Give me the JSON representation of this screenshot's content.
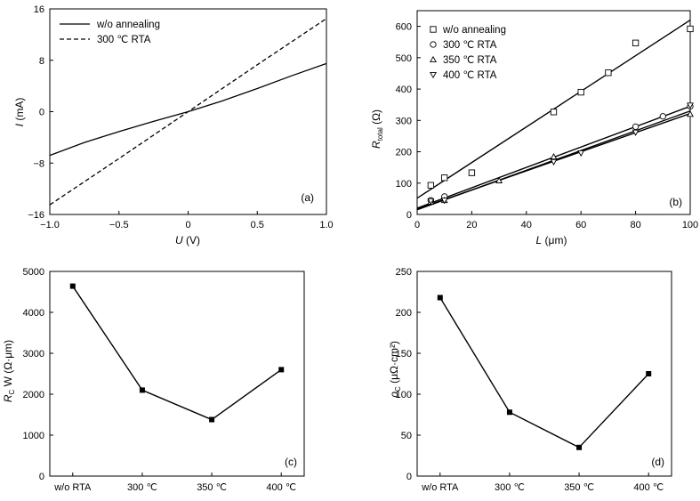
{
  "chart_data": [
    {
      "type": "line",
      "panel_label": "(a)",
      "xlabel": "U",
      "xlabel_unit": " (V)",
      "ylabel": "I",
      "ylabel_unit": " (mA)",
      "xlim": [
        -1.0,
        1.0
      ],
      "ylim": [
        -16,
        16
      ],
      "xticks": [
        -1.0,
        -0.5,
        0,
        0.5,
        1.0
      ],
      "xticklabels": [
        "−1.0",
        "−0.5",
        "0",
        "0.5",
        "1.0"
      ],
      "yticks": [
        -16,
        -8,
        0,
        8,
        16
      ],
      "yticklabels": [
        "−16",
        "−8",
        "0",
        "8",
        "16"
      ],
      "legend_position": "top-left",
      "series": [
        {
          "name": "w/o annealing",
          "style": "solid",
          "x": [
            -1.0,
            -0.75,
            -0.5,
            -0.25,
            0,
            0.25,
            0.5,
            0.75,
            1.0
          ],
          "y": [
            -6.8,
            -4.8,
            -3.1,
            -1.5,
            0,
            1.7,
            3.6,
            5.6,
            7.5
          ]
        },
        {
          "name": "300 ℃ RTA",
          "style": "dashed",
          "x": [
            -1.0,
            -0.5,
            0,
            0.5,
            1.0
          ],
          "y": [
            -14.5,
            -7.3,
            0,
            7.3,
            14.5
          ]
        }
      ]
    },
    {
      "type": "scatter",
      "panel_label": "(b)",
      "xlabel": "L",
      "xlabel_unit": " (μm)",
      "ylabel": "R",
      "ylabel_sub": "total",
      "ylabel_unit": " (Ω)",
      "xlim": [
        0,
        100
      ],
      "ylim": [
        0,
        650
      ],
      "xticks": [
        0,
        20,
        40,
        60,
        80,
        100
      ],
      "xticklabels": [
        "0",
        "20",
        "40",
        "60",
        "80",
        "100"
      ],
      "yticks": [
        0,
        100,
        200,
        300,
        400,
        500,
        600
      ],
      "yticklabels": [
        "0",
        "100",
        "200",
        "300",
        "400",
        "500",
        "600"
      ],
      "legend_position": "top-left",
      "series": [
        {
          "name": "w/o annealing",
          "marker": "square",
          "x": [
            5,
            10,
            20,
            50,
            60,
            70,
            80,
            100
          ],
          "y": [
            93,
            117,
            133,
            327,
            390,
            452,
            547,
            592
          ],
          "fit": [
            [
              0,
              52
            ],
            [
              100,
              620
            ]
          ]
        },
        {
          "name": "300 ℃ RTA",
          "marker": "circle",
          "x": [
            5,
            10,
            80,
            90,
            100
          ],
          "y": [
            45,
            57,
            280,
            313,
            345
          ],
          "fit": [
            [
              0,
              20
            ],
            [
              100,
              345
            ]
          ]
        },
        {
          "name": "350 ℃ RTA",
          "marker": "triangle-up",
          "x": [
            5,
            10,
            30,
            50,
            100
          ],
          "y": [
            40,
            45,
            108,
            184,
            320
          ],
          "fit": [
            [
              0,
              17
            ],
            [
              100,
              322
            ]
          ]
        },
        {
          "name": "400 ℃ RTA",
          "marker": "triangle-down",
          "x": [
            5,
            10,
            50,
            60,
            80,
            100
          ],
          "y": [
            43,
            45,
            168,
            196,
            262,
            348
          ],
          "fit": [
            [
              0,
              15
            ],
            [
              100,
              330
            ]
          ]
        }
      ]
    },
    {
      "type": "line",
      "panel_label": "(c)",
      "ylabel": "R",
      "ylabel_sub": "C",
      "ylabel_unit": " W (Ω·μm)",
      "ylim": [
        0,
        5000
      ],
      "yticks": [
        0,
        1000,
        2000,
        3000,
        4000,
        5000
      ],
      "yticklabels": [
        "0",
        "1000",
        "2000",
        "3000",
        "4000",
        "5000"
      ],
      "categories": [
        "w/o RTA",
        "300 ℃",
        "350 ℃",
        "400 ℃"
      ],
      "values": [
        4640,
        2100,
        1380,
        2600
      ]
    },
    {
      "type": "line",
      "panel_label": "(d)",
      "ylabel": "ρ",
      "ylabel_sub": "C",
      "ylabel_unit": " (μΩ·cm²)",
      "ylim": [
        0,
        250
      ],
      "yticks": [
        0,
        50,
        100,
        150,
        200,
        250
      ],
      "yticklabels": [
        "0",
        "50",
        "100",
        "150",
        "200",
        "250"
      ],
      "categories": [
        "w/o RTA",
        "300 ℃",
        "350 ℃",
        "400 ℃"
      ],
      "values": [
        218,
        78,
        35,
        125
      ]
    }
  ]
}
